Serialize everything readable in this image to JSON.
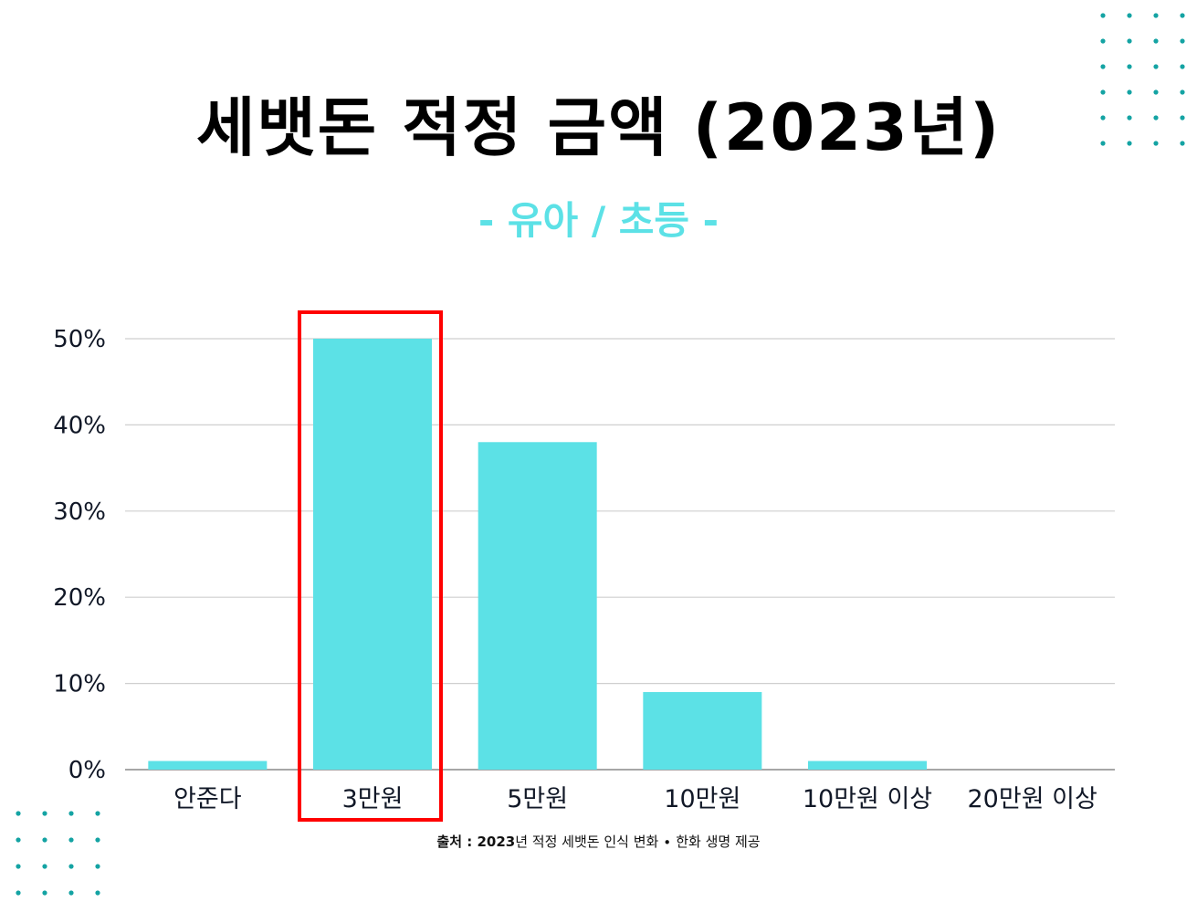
{
  "chart_data": {
    "type": "bar",
    "title": "세뱃돈 적정 금액 (2023년)",
    "subtitle": "- 유아 / 초등 -",
    "categories": [
      "안준다",
      "3만원",
      "5만원",
      "10만원",
      "10만원 이상",
      "20만원 이상"
    ],
    "values": [
      1,
      50,
      38,
      9,
      1,
      0
    ],
    "unit": "%",
    "ylim": [
      0,
      50
    ],
    "yticks": [
      "0%",
      "10%",
      "20%",
      "30%",
      "40%",
      "50%"
    ],
    "ytick_values": [
      0,
      10,
      20,
      30,
      40,
      50
    ],
    "xlabel": "",
    "ylabel": "",
    "grid": true,
    "highlight_index": 1,
    "bar_color": "#5ce1e6",
    "highlight_box_color": "#ff0000",
    "subtitle_color": "#5ce1e6",
    "dot_color": "#14a3a3"
  },
  "source": {
    "prefix": "출처 : ",
    "year": "2023",
    "rest": "년 적정 세뱃돈 인식 변화 ∙ 한화 생명 제공"
  }
}
